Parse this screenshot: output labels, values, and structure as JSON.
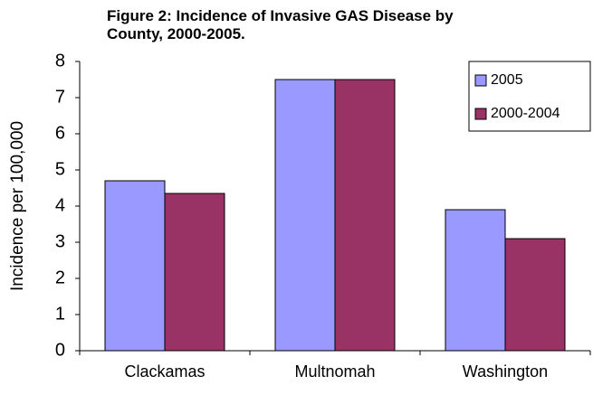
{
  "chart_data": {
    "type": "bar",
    "title": "Figure 2: Incidence of Invasive GAS Disease by County, 2000-2005.",
    "y_label": "Incidence per 100,000",
    "categories": [
      "Clackamas",
      "Multnomah",
      "Washington"
    ],
    "series": [
      {
        "name": "2005",
        "color": "#9999ff",
        "values": [
          4.7,
          7.5,
          3.9
        ]
      },
      {
        "name": "2000-2004",
        "color": "#993366",
        "values": [
          4.35,
          7.5,
          3.1
        ]
      }
    ],
    "ylim": [
      0,
      8
    ],
    "yticks": [
      0,
      1,
      2,
      3,
      4,
      5,
      6,
      7,
      8
    ],
    "grid": false,
    "legend": "upper right"
  }
}
